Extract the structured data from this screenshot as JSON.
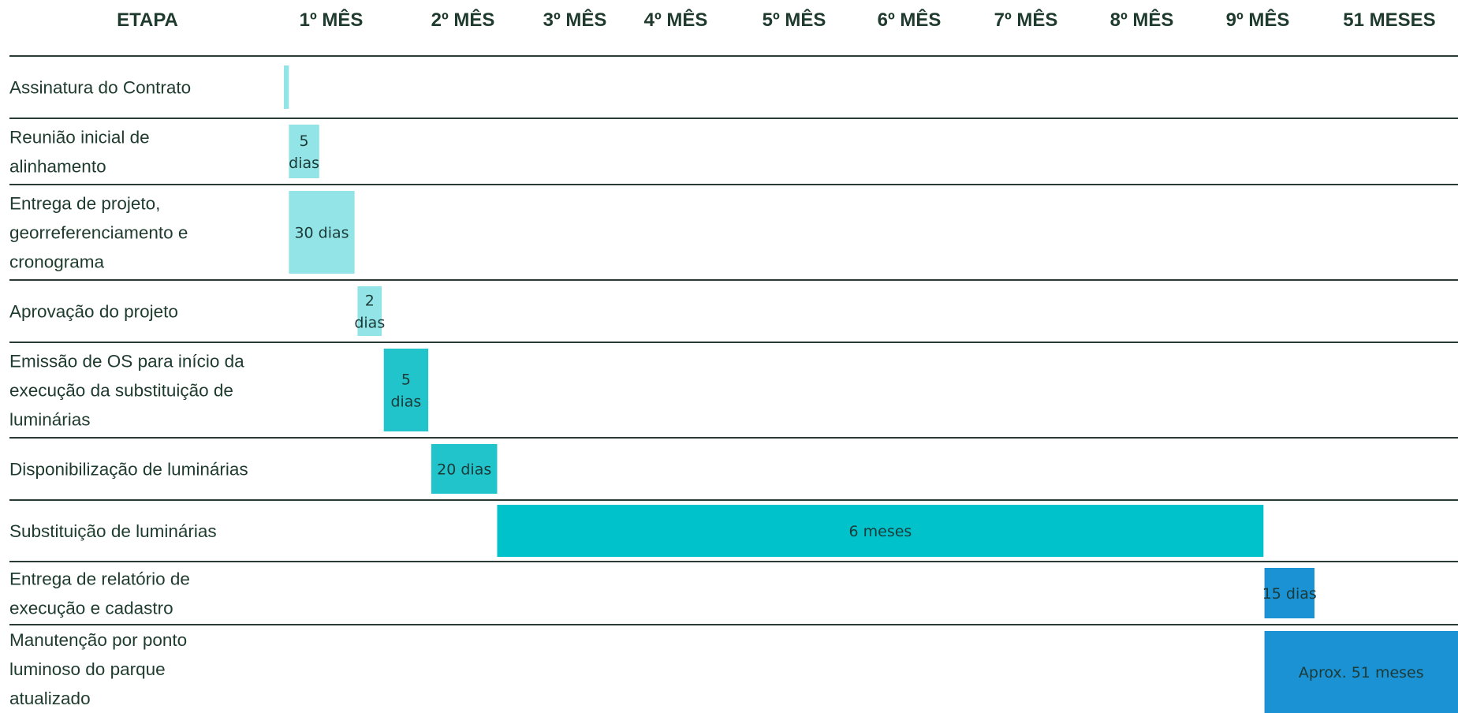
{
  "chart_data": {
    "type": "gantt",
    "title": "",
    "header": {
      "stage_label": "ETAPA",
      "periods": [
        "1º MÊS",
        "2º MÊS",
        "3º MÊS",
        "4º MÊS",
        "5º MÊS",
        "6º MÊS",
        "7º MÊS",
        "8º MÊS",
        "9º MÊS",
        "51 MESES"
      ]
    },
    "tasks": [
      {
        "name": [
          "Assinatura do Contrato"
        ],
        "duration_label": [],
        "start_month": 0.0,
        "end_month": 0.05,
        "color": "#93e4e6"
      },
      {
        "name": [
          "Reunião inicial de",
          "alinhamento"
        ],
        "duration_label": [
          "5",
          "dias"
        ],
        "start_month": 0.05,
        "end_month": 0.35,
        "color": "#93e4e6"
      },
      {
        "name": [
          "Entrega de projeto,",
          "georreferenciamento e",
          "cronograma"
        ],
        "duration_label": [
          "30 dias"
        ],
        "start_month": 0.05,
        "end_month": 0.7,
        "color": "#93e4e6"
      },
      {
        "name": [
          "Aprovação do projeto"
        ],
        "duration_label": [
          "2",
          "dias"
        ],
        "start_month": 0.73,
        "end_month": 0.97,
        "color": "#93e4e6"
      },
      {
        "name": [
          "Emissão de OS para início da",
          "execução da substituição de",
          "luminárias"
        ],
        "duration_label": [
          "5",
          "dias"
        ],
        "start_month": 0.99,
        "end_month": 1.29,
        "color": "#22c4cc"
      },
      {
        "name": [
          "Disponibilização de luminárias"
        ],
        "duration_label": [
          "20 dias"
        ],
        "start_month": 1.31,
        "end_month": 1.75,
        "color": "#22c4cc"
      },
      {
        "name": [
          "Substituição de luminárias"
        ],
        "duration_label": [
          "6 meses"
        ],
        "start_month": 1.75,
        "end_month": 8.47,
        "color": "#00c2cb"
      },
      {
        "name": [
          "Entrega de relatório de",
          "execução e cadastro"
        ],
        "duration_label": [
          "15 dias"
        ],
        "start_month": 8.48,
        "end_month": 9.0,
        "color": "#1a92d4"
      },
      {
        "name": [
          "Manutenção por ponto",
          "luminoso do parque",
          "atualizado"
        ],
        "duration_label": [
          "Aprox. 51 meses"
        ],
        "start_month": 8.48,
        "end_month": 10.0,
        "color": "#1a92d4"
      }
    ]
  }
}
